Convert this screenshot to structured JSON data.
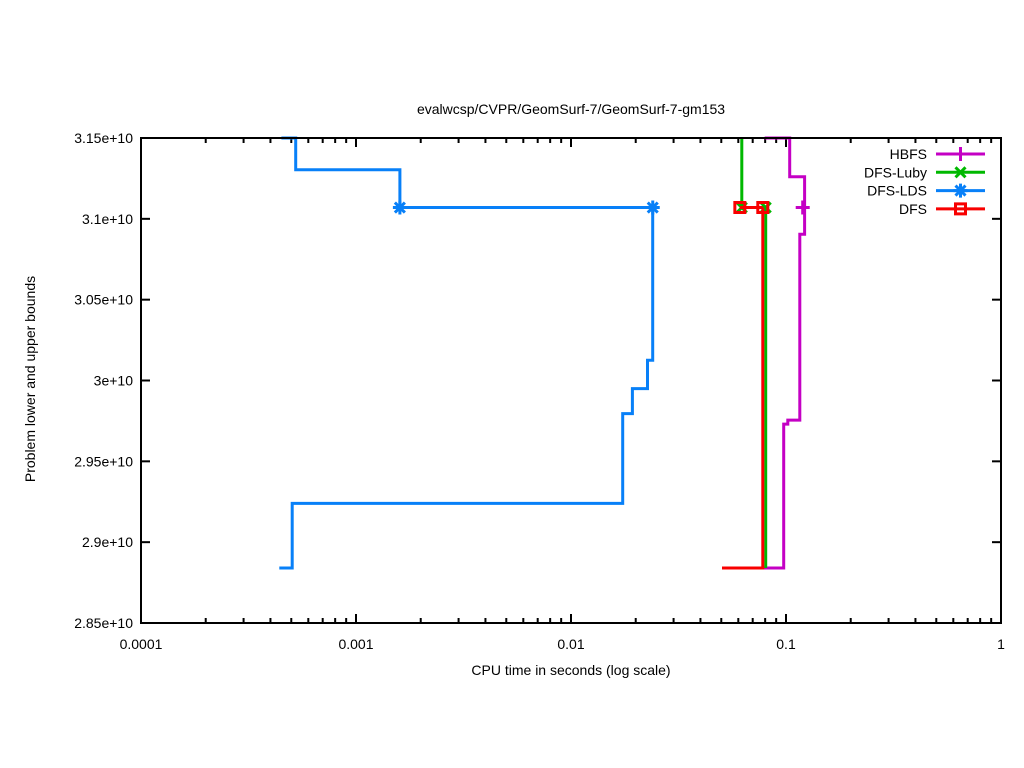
{
  "chart_data": {
    "type": "line",
    "title": "evalwcsp/CVPR/GeomSurf-7/GeomSurf-7-gm153",
    "xlabel": "CPU time in seconds (log scale)",
    "ylabel": "Problem lower and upper bounds",
    "x_scale": "log",
    "xlim": [
      0.0001,
      1
    ],
    "ylim": [
      28500000000.0,
      31500000000.0
    ],
    "grid": false,
    "legend_position": "top-right-inside",
    "x_ticks": [
      {
        "value": 0.0001,
        "label": "0.0001"
      },
      {
        "value": 0.001,
        "label": "0.001"
      },
      {
        "value": 0.01,
        "label": "0.01"
      },
      {
        "value": 0.1,
        "label": "0.1"
      },
      {
        "value": 1,
        "label": "1"
      }
    ],
    "y_ticks": [
      {
        "value": 28500000000.0,
        "label": "2.85e+10"
      },
      {
        "value": 29000000000.0,
        "label": "2.9e+10"
      },
      {
        "value": 29500000000.0,
        "label": "2.95e+10"
      },
      {
        "value": 30000000000.0,
        "label": "3e+10"
      },
      {
        "value": 30500000000.0,
        "label": "3.05e+10"
      },
      {
        "value": 31000000000.0,
        "label": "3.1e+10"
      },
      {
        "value": 31500000000.0,
        "label": "3.15e+10"
      }
    ],
    "optimum_value": 31070000000.0,
    "series": [
      {
        "name": "HBFS",
        "color": "#C400C4",
        "marker": "plus",
        "lines": [
          [
            [
              0.0796,
              31500000000.0
            ],
            [
              0.104,
              31500000000.0
            ],
            [
              0.104,
              31260000000.0
            ],
            [
              0.122,
              31260000000.0
            ],
            [
              0.122,
              31070000000.0
            ]
          ],
          [
            [
              0.078,
              28840000000.0
            ],
            [
              0.0976,
              28840000000.0
            ],
            [
              0.0976,
              29730000000.0
            ],
            [
              0.1019,
              29730000000.0
            ],
            [
              0.1019,
              29755000000.0
            ],
            [
              0.1159,
              29755000000.0
            ],
            [
              0.1159,
              30905000000.0
            ],
            [
              0.122,
              30905000000.0
            ],
            [
              0.122,
              31070000000.0
            ]
          ]
        ],
        "markers": [
          [
            0.1196,
            31070000000.0
          ]
        ]
      },
      {
        "name": "DFS-Luby",
        "color": "#00B800",
        "marker": "cross",
        "lines": [
          [
            [
              0.0623,
              31500000000.0
            ],
            [
              0.0623,
              31070000000.0
            ],
            [
              0.0805,
              31070000000.0
            ]
          ],
          [
            [
              0.0805,
              28840000000.0
            ],
            [
              0.0805,
              31070000000.0
            ]
          ]
        ],
        "markers": [
          [
            0.0623,
            31070000000.0
          ],
          [
            0.0805,
            31070000000.0
          ]
        ]
      },
      {
        "name": "DFS-LDS",
        "color": "#0880F8",
        "marker": "asterisk",
        "lines": [
          [
            [
              0.00045,
              31500000000.0
            ],
            [
              0.000524,
              31500000000.0
            ],
            [
              0.000524,
              31303000000.0
            ],
            [
              0.0016,
              31303000000.0
            ],
            [
              0.0016,
              31070000000.0
            ],
            [
              0.024,
              31070000000.0
            ]
          ],
          [
            [
              0.00044,
              28840000000.0
            ],
            [
              0.000505,
              28840000000.0
            ],
            [
              0.000505,
              29240000000.0
            ],
            [
              0.0174,
              29240000000.0
            ],
            [
              0.0174,
              29795000000.0
            ],
            [
              0.0193,
              29795000000.0
            ],
            [
              0.0193,
              29950000000.0
            ],
            [
              0.0227,
              29950000000.0
            ],
            [
              0.0227,
              30125000000.0
            ],
            [
              0.024,
              30125000000.0
            ],
            [
              0.024,
              31070000000.0
            ]
          ]
        ],
        "markers": [
          [
            0.0016,
            31070000000.0
          ],
          [
            0.024,
            31070000000.0
          ]
        ]
      },
      {
        "name": "DFS",
        "color": "#F80000",
        "marker": "square",
        "lines": [
          [
            [
              0.061,
              31070000000.0
            ],
            [
              0.078,
              31070000000.0
            ]
          ],
          [
            [
              0.0504,
              28840000000.0
            ],
            [
              0.078,
              28840000000.0
            ],
            [
              0.078,
              31070000000.0
            ]
          ]
        ],
        "markers": [
          [
            0.061,
            31070000000.0
          ],
          [
            0.078,
            31070000000.0
          ]
        ]
      }
    ]
  }
}
